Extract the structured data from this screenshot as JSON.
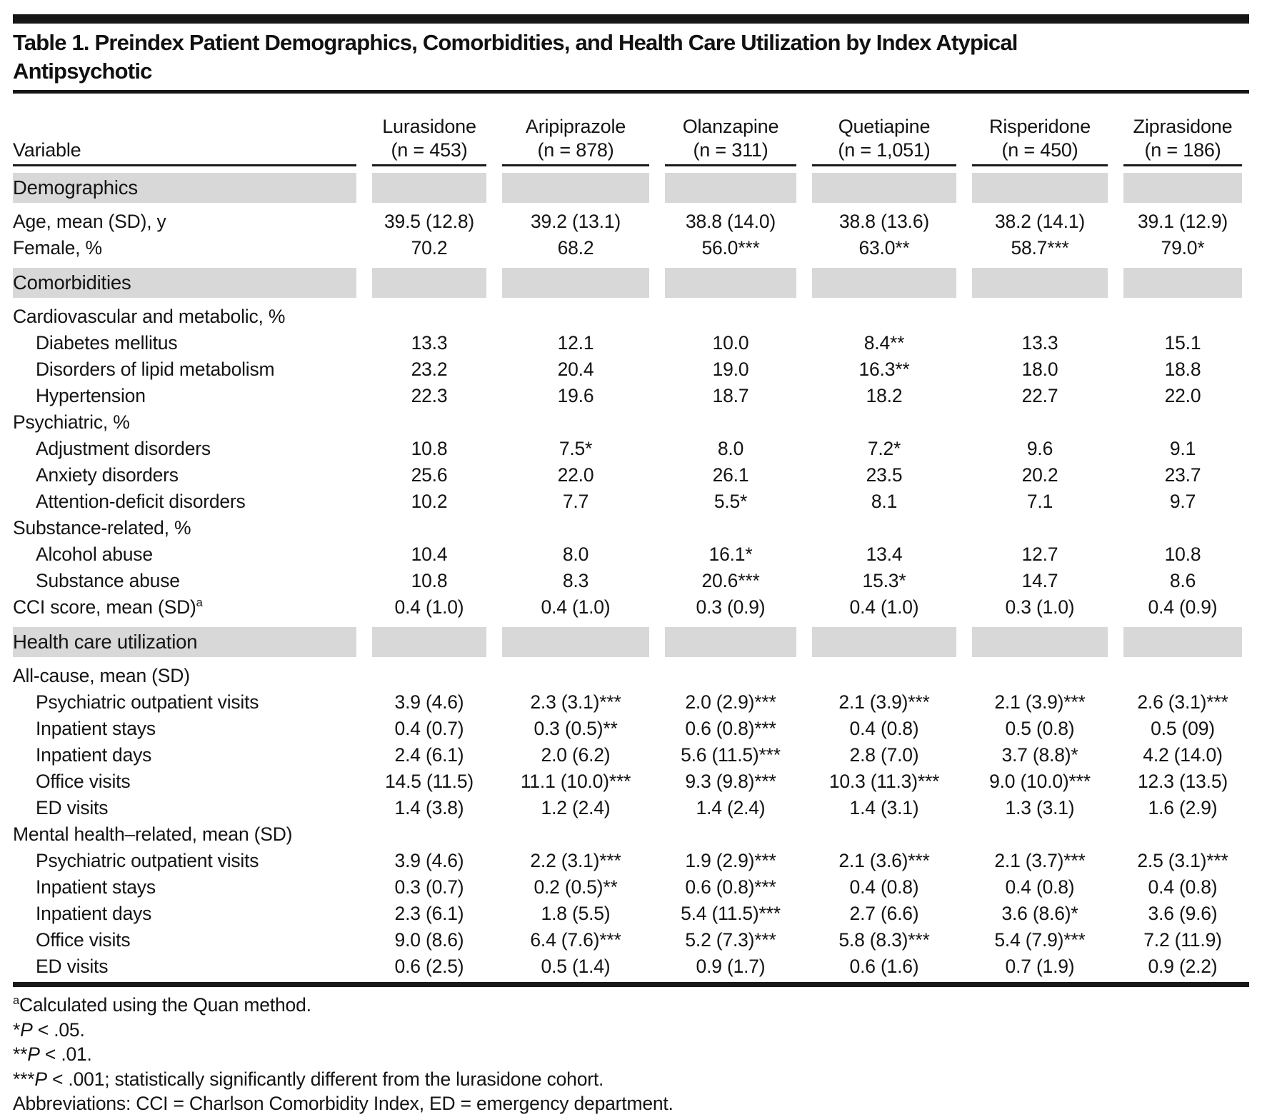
{
  "table": {
    "title_line1": "Table 1. Preindex Patient Demographics, Comorbidities, and Health Care Utilization by Index Atypical",
    "title_line2": "Antipsychotic",
    "variable_header": "Variable",
    "columns": [
      {
        "drug": "Lurasidone",
        "n": "(n = 453)"
      },
      {
        "drug": "Aripiprazole",
        "n": "(n = 878)"
      },
      {
        "drug": "Olanzapine",
        "n": "(n = 311)"
      },
      {
        "drug": "Quetiapine",
        "n": "(n = 1,051)"
      },
      {
        "drug": "Risperidone",
        "n": "(n = 450)"
      },
      {
        "drug": "Ziprasidone",
        "n": "(n = 186)"
      }
    ],
    "rows": [
      {
        "type": "section",
        "label": "Demographics"
      },
      {
        "type": "data",
        "indent": 0,
        "label": "Age, mean (SD), y",
        "values": [
          "39.5 (12.8)",
          "39.2 (13.1)",
          "38.8 (14.0)",
          "38.8 (13.6)",
          "38.2 (14.1)",
          "39.1 (12.9)"
        ]
      },
      {
        "type": "data",
        "indent": 0,
        "label": "Female, %",
        "values": [
          "70.2",
          "68.2",
          "56.0***",
          "63.0**",
          "58.7***",
          "79.0*"
        ]
      },
      {
        "type": "section",
        "label": "Comorbidities"
      },
      {
        "type": "subhead",
        "label": "Cardiovascular and metabolic, %"
      },
      {
        "type": "data",
        "indent": 1,
        "label": "Diabetes mellitus",
        "values": [
          "13.3",
          "12.1",
          "10.0",
          "8.4**",
          "13.3",
          "15.1"
        ]
      },
      {
        "type": "data",
        "indent": 1,
        "label": "Disorders of lipid metabolism",
        "values": [
          "23.2",
          "20.4",
          "19.0",
          "16.3**",
          "18.0",
          "18.8"
        ]
      },
      {
        "type": "data",
        "indent": 1,
        "label": "Hypertension",
        "values": [
          "22.3",
          "19.6",
          "18.7",
          "18.2",
          "22.7",
          "22.0"
        ]
      },
      {
        "type": "subhead",
        "label": "Psychiatric, %"
      },
      {
        "type": "data",
        "indent": 1,
        "label": "Adjustment disorders",
        "values": [
          "10.8",
          "7.5*",
          "8.0",
          "7.2*",
          "9.6",
          "9.1"
        ]
      },
      {
        "type": "data",
        "indent": 1,
        "label": "Anxiety disorders",
        "values": [
          "25.6",
          "22.0",
          "26.1",
          "23.5",
          "20.2",
          "23.7"
        ]
      },
      {
        "type": "data",
        "indent": 1,
        "label": "Attention-deficit disorders",
        "values": [
          "10.2",
          "7.7",
          "5.5*",
          "8.1",
          "7.1",
          "9.7"
        ]
      },
      {
        "type": "subhead",
        "label": "Substance-related, %"
      },
      {
        "type": "data",
        "indent": 1,
        "label": "Alcohol abuse",
        "values": [
          "10.4",
          "8.0",
          "16.1*",
          "13.4",
          "12.7",
          "10.8"
        ]
      },
      {
        "type": "data",
        "indent": 1,
        "label": "Substance abuse",
        "values": [
          "10.8",
          "8.3",
          "20.6***",
          "15.3*",
          "14.7",
          "8.6"
        ]
      },
      {
        "type": "data",
        "indent": 0,
        "label": "CCI score, mean (SD)",
        "label_sup": "a",
        "values": [
          "0.4 (1.0)",
          "0.4 (1.0)",
          "0.3 (0.9)",
          "0.4 (1.0)",
          "0.3 (1.0)",
          "0.4 (0.9)"
        ]
      },
      {
        "type": "section",
        "label": "Health care utilization"
      },
      {
        "type": "subhead",
        "label": "All-cause, mean (SD)"
      },
      {
        "type": "data",
        "indent": 1,
        "label": "Psychiatric outpatient visits",
        "values": [
          "3.9 (4.6)",
          "2.3 (3.1)***",
          "2.0 (2.9)***",
          "2.1 (3.9)***",
          "2.1 (3.9)***",
          "2.6 (3.1)***"
        ]
      },
      {
        "type": "data",
        "indent": 1,
        "label": "Inpatient stays",
        "values": [
          "0.4 (0.7)",
          "0.3 (0.5)**",
          "0.6 (0.8)***",
          "0.4 (0.8)",
          "0.5 (0.8)",
          "0.5 (09)"
        ]
      },
      {
        "type": "data",
        "indent": 1,
        "label": "Inpatient days",
        "values": [
          "2.4 (6.1)",
          "2.0 (6.2)",
          "5.6 (11.5)***",
          "2.8 (7.0)",
          "3.7 (8.8)*",
          "4.2 (14.0)"
        ]
      },
      {
        "type": "data",
        "indent": 1,
        "label": "Office visits",
        "values": [
          "14.5 (11.5)",
          "11.1 (10.0)***",
          "9.3 (9.8)***",
          "10.3 (11.3)***",
          "9.0 (10.0)***",
          "12.3 (13.5)"
        ]
      },
      {
        "type": "data",
        "indent": 1,
        "label": "ED visits",
        "values": [
          "1.4 (3.8)",
          "1.2 (2.4)",
          "1.4 (2.4)",
          "1.4 (3.1)",
          "1.3 (3.1)",
          "1.6 (2.9)"
        ]
      },
      {
        "type": "subhead",
        "label": "Mental health–related, mean (SD)"
      },
      {
        "type": "data",
        "indent": 1,
        "label": "Psychiatric outpatient visits",
        "values": [
          "3.9 (4.6)",
          "2.2 (3.1)***",
          "1.9 (2.9)***",
          "2.1 (3.6)***",
          "2.1 (3.7)***",
          "2.5 (3.1)***"
        ]
      },
      {
        "type": "data",
        "indent": 1,
        "label": "Inpatient stays",
        "values": [
          "0.3 (0.7)",
          "0.2 (0.5)**",
          "0.6 (0.8)***",
          "0.4 (0.8)",
          "0.4 (0.8)",
          "0.4 (0.8)"
        ]
      },
      {
        "type": "data",
        "indent": 1,
        "label": "Inpatient days",
        "values": [
          "2.3 (6.1)",
          "1.8 (5.5)",
          "5.4 (11.5)***",
          "2.7 (6.6)",
          "3.6 (8.6)*",
          "3.6 (9.6)"
        ]
      },
      {
        "type": "data",
        "indent": 1,
        "label": "Office visits",
        "values": [
          "9.0 (8.6)",
          "6.4 (7.6)***",
          "5.2 (7.3)***",
          "5.8 (8.3)***",
          "5.4 (7.9)***",
          "7.2 (11.9)"
        ]
      },
      {
        "type": "data",
        "indent": 1,
        "label": "ED visits",
        "values": [
          "0.6 (2.5)",
          "0.5 (1.4)",
          "0.9 (1.7)",
          "0.6 (1.6)",
          "0.7 (1.9)",
          "0.9 (2.2)"
        ]
      }
    ],
    "footnotes": [
      {
        "sup": "a",
        "text": "Calculated using the Quan method."
      },
      {
        "pre": "*",
        "italic": "P",
        "text": " < .05."
      },
      {
        "pre": "**",
        "italic": "P",
        "text": " < .01."
      },
      {
        "pre": "***",
        "italic": "P",
        "text": " < .001; statistically significantly different from the lurasidone cohort."
      },
      {
        "text": "Abbreviations: CCI = Charlson Comorbidity Index, ED = emergency department."
      }
    ],
    "colors": {
      "section_band": "#d8d8d8",
      "rule": "#1a1a1a",
      "text": "#141414"
    }
  }
}
